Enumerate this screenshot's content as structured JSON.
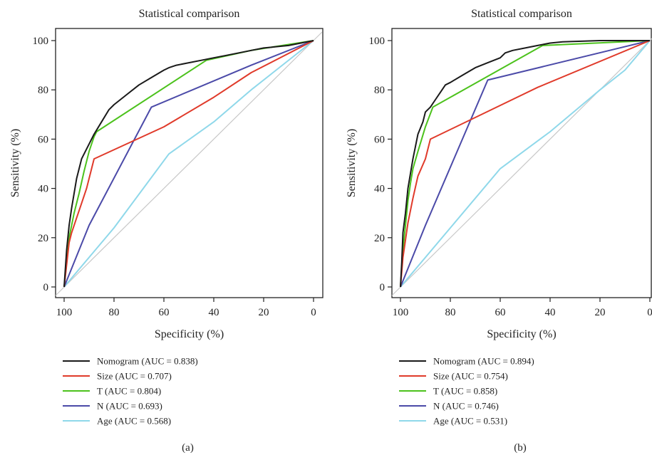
{
  "chart_data": [
    {
      "type": "line",
      "title": "Statistical comparison",
      "xlabel": "Specificity (%)",
      "ylabel": "Sensitivity (%)",
      "xlim": [
        100,
        0
      ],
      "ylim": [
        0,
        100
      ],
      "xticks": [
        "100",
        "80",
        "60",
        "40",
        "20",
        "0"
      ],
      "yticks": [
        "0",
        "20",
        "40",
        "60",
        "80",
        "100"
      ],
      "panel_label": "(a)",
      "legend_position": "below",
      "grid": false,
      "reference_line": {
        "x": [
          100,
          0
        ],
        "y": [
          0,
          100
        ],
        "color": "#c8c8c8"
      },
      "series": [
        {
          "name": "Nomogram (AUC = 0.838)",
          "color": "#1a1a1a",
          "x": [
            100,
            99,
            98,
            97,
            95,
            93,
            90,
            88,
            85,
            82,
            80,
            75,
            70,
            65,
            60,
            58,
            55,
            50,
            45,
            40,
            35,
            30,
            25,
            20,
            10,
            0
          ],
          "y": [
            0,
            15,
            25,
            32,
            44,
            52,
            58,
            62,
            67,
            72,
            74,
            78,
            82,
            85,
            88,
            89,
            90,
            91,
            92,
            93,
            94,
            95,
            96,
            97,
            98,
            100
          ]
        },
        {
          "name": "Size (AUC = 0.707)",
          "color": "#e03a2a",
          "x": [
            100,
            98,
            97,
            95,
            93,
            91,
            88,
            60,
            40,
            25,
            0
          ],
          "y": [
            0,
            18,
            22,
            28,
            34,
            40,
            52,
            65,
            77,
            87,
            100
          ]
        },
        {
          "name": "T (AUC = 0.804)",
          "color": "#4cc21c",
          "x": [
            100,
            98,
            96,
            94,
            92,
            90,
            88,
            87,
            43,
            25,
            0
          ],
          "y": [
            0,
            20,
            30,
            38,
            47,
            55,
            61,
            63,
            92,
            96,
            100
          ]
        },
        {
          "name": "N (AUC = 0.693)",
          "color": "#4b4aa8",
          "x": [
            100,
            90,
            65,
            25,
            0
          ],
          "y": [
            0,
            25,
            73,
            90,
            100
          ]
        },
        {
          "name": "Age (AUC = 0.568)",
          "color": "#8fd8ea",
          "x": [
            100,
            80,
            58,
            40,
            25,
            0
          ],
          "y": [
            0,
            24,
            54,
            67,
            80,
            100
          ]
        }
      ]
    },
    {
      "type": "line",
      "title": "Statistical comparison",
      "xlabel": "Specificity (%)",
      "ylabel": "Sensitivity (%)",
      "xlim": [
        100,
        0
      ],
      "ylim": [
        0,
        100
      ],
      "xticks": [
        "100",
        "80",
        "60",
        "40",
        "20",
        "0"
      ],
      "yticks": [
        "0",
        "20",
        "40",
        "60",
        "80",
        "100"
      ],
      "panel_label": "(b)",
      "legend_position": "below",
      "grid": false,
      "reference_line": {
        "x": [
          100,
          0
        ],
        "y": [
          0,
          100
        ],
        "color": "#c8c8c8"
      },
      "series": [
        {
          "name": "Nomogram (AUC = 0.894)",
          "color": "#1a1a1a",
          "x": [
            100,
            99.5,
            99,
            98,
            97,
            96,
            95,
            94,
            93,
            91,
            90,
            88,
            86,
            84,
            82,
            80,
            75,
            70,
            65,
            60,
            58,
            55,
            50,
            45,
            40,
            35,
            20,
            0
          ],
          "y": [
            0,
            10,
            22,
            30,
            40,
            46,
            52,
            57,
            62,
            67,
            71,
            73,
            76,
            79,
            82,
            83,
            86,
            89,
            91,
            93,
            95,
            96,
            97,
            98,
            99,
            99.5,
            100,
            100
          ]
        },
        {
          "name": "Size (AUC = 0.754)",
          "color": "#e03a2a",
          "x": [
            100,
            99,
            97,
            95,
            93,
            90,
            88,
            45,
            0
          ],
          "y": [
            0,
            12,
            26,
            36,
            45,
            52,
            60,
            81,
            100
          ]
        },
        {
          "name": "T (AUC = 0.858)",
          "color": "#4cc21c",
          "x": [
            100,
            99,
            98,
            97,
            96,
            95,
            93,
            90,
            87,
            43,
            0
          ],
          "y": [
            0,
            15,
            25,
            35,
            42,
            48,
            55,
            65,
            73,
            98,
            100
          ]
        },
        {
          "name": "N (AUC = 0.746)",
          "color": "#4b4aa8",
          "x": [
            100,
            90,
            65,
            0
          ],
          "y": [
            0,
            25,
            84,
            100
          ]
        },
        {
          "name": "Age (AUC = 0.531)",
          "color": "#8fd8ea",
          "x": [
            100,
            80,
            60,
            40,
            20,
            10,
            0
          ],
          "y": [
            0,
            24,
            48,
            63,
            80,
            88,
            100
          ]
        }
      ]
    }
  ]
}
